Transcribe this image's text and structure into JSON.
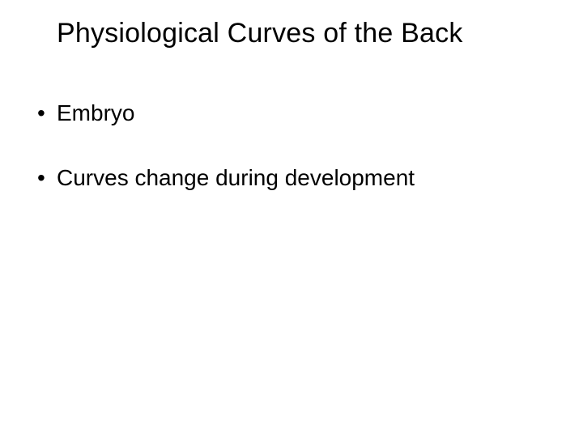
{
  "slide": {
    "title": "Physiological Curves of the Back",
    "bullets": [
      "Embryo",
      "Curves change during development"
    ],
    "background_color": "#ffffff",
    "text_color": "#000000",
    "title_fontsize": 34,
    "body_fontsize": 28
  }
}
